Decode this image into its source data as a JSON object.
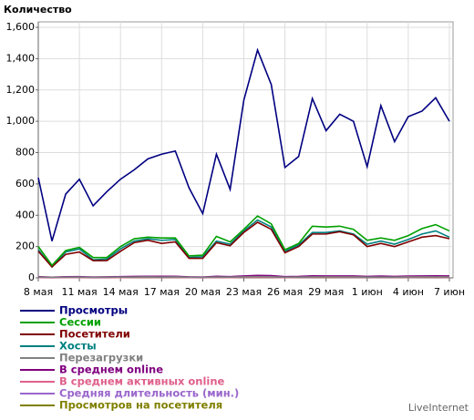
{
  "chart_data": {
    "type": "line",
    "title": "Количество",
    "categories": [
      "8 мая",
      null,
      null,
      "11 мая",
      null,
      null,
      "14 мая",
      null,
      null,
      "17 мая",
      null,
      null,
      "20 мая",
      null,
      null,
      "23 мая",
      null,
      null,
      "26 мая",
      null,
      null,
      "29 мая",
      null,
      null,
      "1 июн",
      null,
      null,
      "4 июн",
      null,
      null,
      "7 июн"
    ],
    "ylim": [
      0,
      1600
    ],
    "yticks": [
      0,
      200,
      400,
      600,
      800,
      {
        "value": 1000,
        "label": "1,000"
      },
      {
        "value": 1200,
        "label": "1,200"
      },
      {
        "value": 1400,
        "label": "1,400"
      },
      {
        "value": 1600,
        "label": "1,600"
      }
    ],
    "grid": true,
    "series": [
      {
        "name": "Просмотры",
        "color": "#000080",
        "values": [
          640,
          235,
          535,
          630,
          460,
          550,
          630,
          690,
          760,
          790,
          810,
          575,
          410,
          790,
          565,
          1135,
          1455,
          1235,
          705,
          775,
          1145,
          940,
          1045,
          1000,
          710,
          1100,
          870,
          1030,
          1065,
          1150,
          1000
        ]
      },
      {
        "name": "Сессии",
        "color": "#00a000",
        "values": [
          200,
          80,
          175,
          195,
          130,
          130,
          200,
          250,
          260,
          255,
          255,
          140,
          145,
          265,
          230,
          310,
          395,
          345,
          180,
          220,
          330,
          325,
          330,
          310,
          240,
          255,
          240,
          270,
          315,
          340,
          300
        ]
      },
      {
        "name": "Посетители",
        "color": "#800000",
        "values": [
          170,
          70,
          150,
          165,
          110,
          110,
          170,
          225,
          240,
          220,
          230,
          125,
          125,
          225,
          205,
          290,
          355,
          310,
          160,
          200,
          280,
          280,
          295,
          275,
          200,
          220,
          200,
          230,
          260,
          270,
          250
        ]
      },
      {
        "name": "Хосты",
        "color": "#008080",
        "values": [
          180,
          70,
          165,
          185,
          115,
          120,
          185,
          235,
          250,
          240,
          245,
          130,
          135,
          235,
          215,
          300,
          370,
          325,
          170,
          210,
          290,
          290,
          300,
          280,
          215,
          235,
          215,
          245,
          280,
          300,
          260
        ]
      },
      {
        "name": "Перезагрузки",
        "color": "#808080",
        "values": [
          5,
          3,
          4,
          5,
          3,
          4,
          5,
          5,
          6,
          5,
          6,
          4,
          3,
          5,
          5,
          6,
          8,
          7,
          4,
          5,
          6,
          6,
          6,
          6,
          5,
          5,
          5,
          6,
          6,
          6,
          6
        ]
      },
      {
        "name": "В среднем online",
        "color": "#800080",
        "values": [
          8,
          4,
          7,
          8,
          5,
          6,
          8,
          9,
          10,
          10,
          10,
          6,
          5,
          10,
          8,
          12,
          16,
          14,
          8,
          9,
          13,
          12,
          12,
          12,
          9,
          11,
          9,
          11,
          12,
          13,
          12
        ]
      },
      {
        "name": "В среднем активных online",
        "color": "#e0608a",
        "values": [
          2,
          1,
          2,
          2,
          1,
          1,
          2,
          3,
          3,
          3,
          3,
          2,
          1,
          3,
          2,
          4,
          5,
          4,
          2,
          3,
          4,
          4,
          4,
          4,
          3,
          3,
          3,
          3,
          4,
          4,
          3
        ]
      },
      {
        "name": "Средняя длительность (мин.)",
        "color": "#9966cc",
        "values": [
          5,
          4,
          5,
          5,
          5,
          5,
          5,
          5,
          5,
          5,
          5,
          5,
          5,
          5,
          5,
          5,
          5,
          5,
          5,
          5,
          5,
          5,
          5,
          5,
          5,
          5,
          5,
          5,
          5,
          5,
          5
        ]
      },
      {
        "name": "Просмотров на посетителя",
        "color": "#808000",
        "values": [
          4,
          3,
          4,
          4,
          4,
          5,
          4,
          3,
          3,
          4,
          4,
          5,
          3,
          4,
          3,
          4,
          4,
          4,
          4,
          4,
          4,
          3,
          4,
          4,
          4,
          5,
          4,
          4,
          4,
          4,
          4
        ]
      }
    ],
    "watermark": "LiveInternet"
  }
}
